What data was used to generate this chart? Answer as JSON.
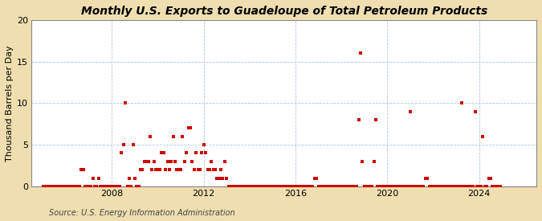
{
  "title": "Monthly U.S. Exports to Guadeloupe of Total Petroleum Products",
  "ylabel": "Thousand Barrels per Day",
  "source": "Source: U.S. Energy Information Administration",
  "figure_bg_color": "#f0deb0",
  "plot_bg_color": "#ffffff",
  "marker_color": "#cc0000",
  "ylim": [
    0,
    20
  ],
  "yticks": [
    0,
    5,
    10,
    15,
    20
  ],
  "xlim": [
    2004.5,
    2026.5
  ],
  "xtick_years": [
    2008,
    2012,
    2016,
    2020,
    2024
  ],
  "title_fontsize": 10,
  "ylabel_fontsize": 8,
  "source_fontsize": 7,
  "tick_fontsize": 8,
  "data_points": [
    [
      2005.0,
      0
    ],
    [
      2005.08,
      0
    ],
    [
      2005.17,
      0
    ],
    [
      2005.25,
      0
    ],
    [
      2005.33,
      0
    ],
    [
      2005.42,
      0
    ],
    [
      2005.5,
      0
    ],
    [
      2005.58,
      0
    ],
    [
      2005.67,
      0
    ],
    [
      2005.75,
      0
    ],
    [
      2005.83,
      0
    ],
    [
      2005.92,
      0
    ],
    [
      2006.0,
      0
    ],
    [
      2006.08,
      0
    ],
    [
      2006.17,
      0
    ],
    [
      2006.25,
      0
    ],
    [
      2006.33,
      0
    ],
    [
      2006.42,
      0
    ],
    [
      2006.5,
      0
    ],
    [
      2006.58,
      0
    ],
    [
      2006.67,
      2
    ],
    [
      2006.75,
      2
    ],
    [
      2006.83,
      0
    ],
    [
      2006.92,
      0
    ],
    [
      2007.0,
      0
    ],
    [
      2007.08,
      0
    ],
    [
      2007.17,
      1
    ],
    [
      2007.25,
      0
    ],
    [
      2007.33,
      0
    ],
    [
      2007.42,
      1
    ],
    [
      2007.5,
      0
    ],
    [
      2007.58,
      0
    ],
    [
      2007.67,
      0
    ],
    [
      2007.75,
      0
    ],
    [
      2007.83,
      0
    ],
    [
      2007.92,
      0
    ],
    [
      2008.0,
      0
    ],
    [
      2008.08,
      0
    ],
    [
      2008.17,
      0
    ],
    [
      2008.25,
      0
    ],
    [
      2008.33,
      0
    ],
    [
      2008.42,
      4
    ],
    [
      2008.5,
      5
    ],
    [
      2008.58,
      10
    ],
    [
      2008.67,
      0
    ],
    [
      2008.75,
      1
    ],
    [
      2008.83,
      0
    ],
    [
      2008.92,
      5
    ],
    [
      2009.0,
      1
    ],
    [
      2009.08,
      0
    ],
    [
      2009.17,
      0
    ],
    [
      2009.25,
      2
    ],
    [
      2009.33,
      2
    ],
    [
      2009.42,
      3
    ],
    [
      2009.5,
      3
    ],
    [
      2009.58,
      3
    ],
    [
      2009.67,
      6
    ],
    [
      2009.75,
      2
    ],
    [
      2009.83,
      3
    ],
    [
      2009.92,
      2
    ],
    [
      2010.0,
      2
    ],
    [
      2010.08,
      2
    ],
    [
      2010.17,
      4
    ],
    [
      2010.25,
      4
    ],
    [
      2010.33,
      2
    ],
    [
      2010.42,
      3
    ],
    [
      2010.5,
      2
    ],
    [
      2010.58,
      3
    ],
    [
      2010.67,
      6
    ],
    [
      2010.75,
      3
    ],
    [
      2010.83,
      2
    ],
    [
      2010.92,
      2
    ],
    [
      2011.0,
      2
    ],
    [
      2011.08,
      6
    ],
    [
      2011.17,
      3
    ],
    [
      2011.25,
      4
    ],
    [
      2011.33,
      7
    ],
    [
      2011.42,
      7
    ],
    [
      2011.5,
      3
    ],
    [
      2011.58,
      2
    ],
    [
      2011.67,
      4
    ],
    [
      2011.75,
      2
    ],
    [
      2011.83,
      2
    ],
    [
      2011.92,
      4
    ],
    [
      2012.0,
      5
    ],
    [
      2012.08,
      4
    ],
    [
      2012.17,
      2
    ],
    [
      2012.25,
      2
    ],
    [
      2012.33,
      3
    ],
    [
      2012.42,
      2
    ],
    [
      2012.5,
      2
    ],
    [
      2012.58,
      1
    ],
    [
      2012.67,
      1
    ],
    [
      2012.75,
      2
    ],
    [
      2012.83,
      1
    ],
    [
      2012.92,
      3
    ],
    [
      2013.0,
      1
    ],
    [
      2013.08,
      0
    ],
    [
      2013.17,
      0
    ],
    [
      2013.25,
      0
    ],
    [
      2013.33,
      0
    ],
    [
      2013.42,
      0
    ],
    [
      2013.5,
      0
    ],
    [
      2013.58,
      0
    ],
    [
      2013.67,
      0
    ],
    [
      2013.75,
      0
    ],
    [
      2013.83,
      0
    ],
    [
      2013.92,
      0
    ],
    [
      2014.0,
      0
    ],
    [
      2014.08,
      0
    ],
    [
      2014.17,
      0
    ],
    [
      2014.25,
      0
    ],
    [
      2014.33,
      0
    ],
    [
      2014.42,
      0
    ],
    [
      2014.5,
      0
    ],
    [
      2014.58,
      0
    ],
    [
      2014.67,
      0
    ],
    [
      2014.75,
      0
    ],
    [
      2014.83,
      0
    ],
    [
      2014.92,
      0
    ],
    [
      2015.0,
      0
    ],
    [
      2015.08,
      0
    ],
    [
      2015.17,
      0
    ],
    [
      2015.25,
      0
    ],
    [
      2015.33,
      0
    ],
    [
      2015.42,
      0
    ],
    [
      2015.5,
      0
    ],
    [
      2015.58,
      0
    ],
    [
      2015.67,
      0
    ],
    [
      2015.75,
      0
    ],
    [
      2015.83,
      0
    ],
    [
      2015.92,
      0
    ],
    [
      2016.0,
      0
    ],
    [
      2016.08,
      0
    ],
    [
      2016.17,
      0
    ],
    [
      2016.25,
      0
    ],
    [
      2016.33,
      0
    ],
    [
      2016.42,
      0
    ],
    [
      2016.5,
      0
    ],
    [
      2016.58,
      0
    ],
    [
      2016.67,
      0
    ],
    [
      2016.75,
      0
    ],
    [
      2016.83,
      1
    ],
    [
      2016.92,
      1
    ],
    [
      2017.0,
      0
    ],
    [
      2017.08,
      0
    ],
    [
      2017.17,
      0
    ],
    [
      2017.25,
      0
    ],
    [
      2017.33,
      0
    ],
    [
      2017.42,
      0
    ],
    [
      2017.5,
      0
    ],
    [
      2017.58,
      0
    ],
    [
      2017.67,
      0
    ],
    [
      2017.75,
      0
    ],
    [
      2017.83,
      0
    ],
    [
      2017.92,
      0
    ],
    [
      2018.0,
      0
    ],
    [
      2018.08,
      0
    ],
    [
      2018.17,
      0
    ],
    [
      2018.25,
      0
    ],
    [
      2018.33,
      0
    ],
    [
      2018.42,
      0
    ],
    [
      2018.5,
      0
    ],
    [
      2018.58,
      0
    ],
    [
      2018.67,
      0
    ],
    [
      2018.75,
      8
    ],
    [
      2018.83,
      16
    ],
    [
      2018.92,
      3
    ],
    [
      2019.0,
      0
    ],
    [
      2019.08,
      0
    ],
    [
      2019.17,
      0
    ],
    [
      2019.25,
      0
    ],
    [
      2019.33,
      0
    ],
    [
      2019.42,
      3
    ],
    [
      2019.5,
      8
    ],
    [
      2019.58,
      0
    ],
    [
      2019.67,
      0
    ],
    [
      2019.75,
      0
    ],
    [
      2019.83,
      0
    ],
    [
      2019.92,
      0
    ],
    [
      2020.0,
      0
    ],
    [
      2020.08,
      0
    ],
    [
      2020.17,
      0
    ],
    [
      2020.25,
      0
    ],
    [
      2020.33,
      0
    ],
    [
      2020.42,
      0
    ],
    [
      2020.5,
      0
    ],
    [
      2020.58,
      0
    ],
    [
      2020.67,
      0
    ],
    [
      2020.75,
      0
    ],
    [
      2020.83,
      0
    ],
    [
      2020.92,
      0
    ],
    [
      2021.0,
      9
    ],
    [
      2021.08,
      0
    ],
    [
      2021.17,
      0
    ],
    [
      2021.25,
      0
    ],
    [
      2021.33,
      0
    ],
    [
      2021.42,
      0
    ],
    [
      2021.5,
      0
    ],
    [
      2021.58,
      0
    ],
    [
      2021.67,
      1
    ],
    [
      2021.75,
      1
    ],
    [
      2021.83,
      0
    ],
    [
      2021.92,
      0
    ],
    [
      2022.0,
      0
    ],
    [
      2022.08,
      0
    ],
    [
      2022.17,
      0
    ],
    [
      2022.25,
      0
    ],
    [
      2022.33,
      0
    ],
    [
      2022.42,
      0
    ],
    [
      2022.5,
      0
    ],
    [
      2022.58,
      0
    ],
    [
      2022.67,
      0
    ],
    [
      2022.75,
      0
    ],
    [
      2022.83,
      0
    ],
    [
      2022.92,
      0
    ],
    [
      2023.0,
      0
    ],
    [
      2023.08,
      0
    ],
    [
      2023.17,
      0
    ],
    [
      2023.25,
      10
    ],
    [
      2023.33,
      0
    ],
    [
      2023.42,
      0
    ],
    [
      2023.5,
      0
    ],
    [
      2023.58,
      0
    ],
    [
      2023.67,
      0
    ],
    [
      2023.75,
      0
    ],
    [
      2023.83,
      9
    ],
    [
      2023.92,
      0
    ],
    [
      2024.0,
      0
    ],
    [
      2024.08,
      0
    ],
    [
      2024.17,
      6
    ],
    [
      2024.25,
      0
    ],
    [
      2024.33,
      0
    ],
    [
      2024.42,
      1
    ],
    [
      2024.5,
      1
    ],
    [
      2024.58,
      0
    ],
    [
      2024.67,
      0
    ],
    [
      2024.75,
      0
    ],
    [
      2024.83,
      0
    ],
    [
      2024.92,
      0
    ]
  ]
}
